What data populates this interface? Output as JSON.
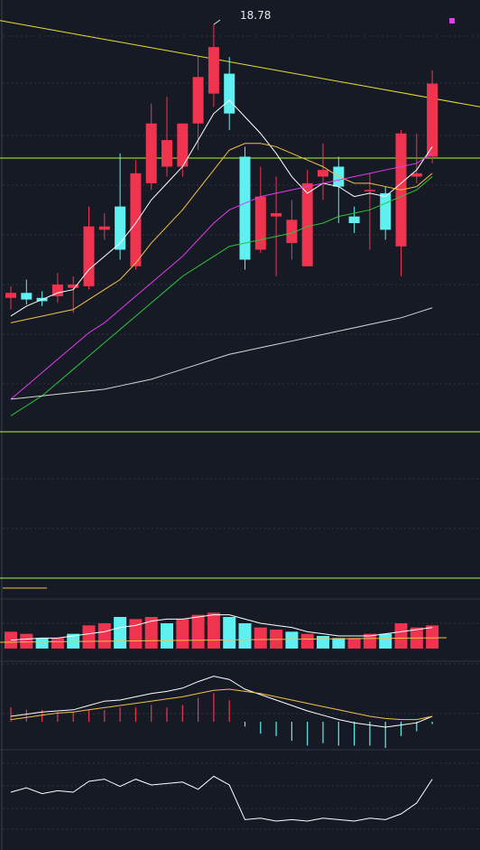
{
  "colors": {
    "background": "#161a24",
    "up": "#f0344f",
    "down": "#5ff0f2",
    "ma_white": "#ffffff",
    "ma_yellow": "#f3c04a",
    "ma_magenta": "#e33bef",
    "ma_green": "#2dc43b",
    "ma_gray": "#d6d6d6",
    "trend_line": "#e8e03a",
    "level_line": "#b4f04a",
    "grid": "#2e3442"
  },
  "annotations": {
    "high_label": "18.78"
  },
  "chart_data": [
    {
      "type": "candlestick",
      "role": "price",
      "annotation_high": "18.78",
      "candles": [
        {
          "i": 0,
          "o": 10.55,
          "c": 10.7,
          "h": 10.9,
          "l": 10.2
        },
        {
          "i": 1,
          "o": 10.7,
          "c": 10.5,
          "h": 11.1,
          "l": 10.35
        },
        {
          "i": 2,
          "o": 10.55,
          "c": 10.45,
          "h": 10.75,
          "l": 10.3
        },
        {
          "i": 3,
          "o": 10.6,
          "c": 10.95,
          "h": 11.3,
          "l": 10.4
        },
        {
          "i": 4,
          "o": 10.85,
          "c": 10.95,
          "h": 11.2,
          "l": 10.1
        },
        {
          "i": 5,
          "o": 10.9,
          "c": 12.7,
          "h": 13.3,
          "l": 10.8
        },
        {
          "i": 6,
          "o": 12.6,
          "c": 12.7,
          "h": 13.1,
          "l": 12.3
        },
        {
          "i": 7,
          "o": 13.3,
          "c": 12.0,
          "h": 14.9,
          "l": 11.7
        },
        {
          "i": 8,
          "o": 11.5,
          "c": 14.3,
          "h": 14.7,
          "l": 11.4
        },
        {
          "i": 9,
          "o": 14.0,
          "c": 15.8,
          "h": 16.4,
          "l": 13.8
        },
        {
          "i": 10,
          "o": 14.5,
          "c": 15.3,
          "h": 16.6,
          "l": 14.2
        },
        {
          "i": 11,
          "o": 14.5,
          "c": 15.8,
          "h": 15.8,
          "l": 14.2
        },
        {
          "i": 12,
          "o": 15.8,
          "c": 17.2,
          "h": 17.8,
          "l": 15.0
        },
        {
          "i": 13,
          "o": 16.7,
          "c": 18.1,
          "h": 18.78,
          "l": 16.3
        },
        {
          "i": 14,
          "o": 17.3,
          "c": 16.1,
          "h": 17.8,
          "l": 15.6
        },
        {
          "i": 15,
          "o": 14.8,
          "c": 11.7,
          "h": 15.1,
          "l": 11.4
        },
        {
          "i": 16,
          "o": 12.0,
          "c": 13.6,
          "h": 14.5,
          "l": 11.9
        },
        {
          "i": 17,
          "o": 13.0,
          "c": 13.1,
          "h": 14.2,
          "l": 11.2
        },
        {
          "i": 18,
          "o": 12.2,
          "c": 12.9,
          "h": 13.5,
          "l": 11.7
        },
        {
          "i": 19,
          "o": 11.5,
          "c": 14.0,
          "h": 14.4,
          "l": 11.5
        },
        {
          "i": 20,
          "o": 14.2,
          "c": 14.4,
          "h": 15.2,
          "l": 13.5
        },
        {
          "i": 21,
          "o": 14.5,
          "c": 13.9,
          "h": 14.8,
          "l": 12.8
        },
        {
          "i": 22,
          "o": 13.0,
          "c": 12.8,
          "h": 13.3,
          "l": 12.5
        },
        {
          "i": 23,
          "o": 13.8,
          "c": 13.8,
          "h": 14.3,
          "l": 12.0
        },
        {
          "i": 24,
          "o": 13.7,
          "c": 12.6,
          "h": 13.9,
          "l": 12.3
        },
        {
          "i": 25,
          "o": 12.1,
          "c": 15.5,
          "h": 15.6,
          "l": 11.2
        },
        {
          "i": 26,
          "o": 14.2,
          "c": 14.3,
          "h": 15.5,
          "l": 14.0
        },
        {
          "i": 27,
          "o": 14.8,
          "c": 17.0,
          "h": 17.4,
          "l": 14.6
        }
      ],
      "ma_series": [
        {
          "color_key": "ma_white",
          "values": [
            10.0,
            10.3,
            10.5,
            10.7,
            10.8,
            11.4,
            11.8,
            12.2,
            12.8,
            13.5,
            14.0,
            14.5,
            15.3,
            16.1,
            16.5,
            16.0,
            15.5,
            14.9,
            14.2,
            13.7,
            14.0,
            13.9,
            13.6,
            13.7,
            13.6,
            14.0,
            14.4,
            15.1
          ]
        },
        {
          "color_key": "ma_yellow",
          "values": [
            9.8,
            9.9,
            10.0,
            10.1,
            10.2,
            10.5,
            10.8,
            11.1,
            11.6,
            12.2,
            12.7,
            13.2,
            13.8,
            14.4,
            15.0,
            15.2,
            15.2,
            15.1,
            14.9,
            14.7,
            14.5,
            14.2,
            14.0,
            14.0,
            13.9,
            13.8,
            13.9,
            14.3
          ]
        },
        {
          "color_key": "ma_magenta",
          "values": [
            7.5,
            7.9,
            8.3,
            8.7,
            9.1,
            9.5,
            9.8,
            10.2,
            10.6,
            11.0,
            11.4,
            11.8,
            12.3,
            12.8,
            13.2,
            13.4,
            13.6,
            13.7,
            13.8,
            13.9,
            14.0,
            14.1,
            14.2,
            14.3,
            14.4,
            14.5,
            14.6,
            14.9
          ]
        },
        {
          "color_key": "ma_green",
          "values": [
            7.0,
            7.3,
            7.6,
            8.0,
            8.4,
            8.8,
            9.2,
            9.6,
            10.0,
            10.4,
            10.8,
            11.2,
            11.5,
            11.8,
            12.1,
            12.2,
            12.3,
            12.4,
            12.5,
            12.7,
            12.8,
            13.0,
            13.1,
            13.2,
            13.4,
            13.6,
            13.8,
            14.2
          ]
        },
        {
          "color_key": "ma_gray",
          "values": [
            7.5,
            7.55,
            7.6,
            7.65,
            7.7,
            7.75,
            7.8,
            7.9,
            8.0,
            8.1,
            8.25,
            8.4,
            8.55,
            8.7,
            8.85,
            8.95,
            9.05,
            9.15,
            9.25,
            9.35,
            9.45,
            9.55,
            9.65,
            9.75,
            9.85,
            9.95,
            10.1,
            10.25
          ]
        }
      ]
    },
    {
      "type": "bar",
      "role": "volume",
      "values": [
        8,
        7,
        5,
        5,
        7,
        11,
        12,
        15,
        14,
        15,
        12,
        14,
        16,
        17,
        15,
        12,
        10,
        9,
        8,
        7,
        6,
        5,
        5,
        7,
        7,
        12,
        10,
        11
      ],
      "up": [
        1,
        1,
        0,
        1,
        0,
        1,
        1,
        0,
        1,
        1,
        0,
        1,
        1,
        1,
        0,
        0,
        1,
        1,
        0,
        1,
        0,
        0,
        1,
        1,
        0,
        1,
        1,
        1
      ],
      "ma_line": [
        4,
        4.5,
        5,
        5,
        6,
        7,
        8,
        10,
        11,
        13,
        14,
        14,
        15,
        16,
        16,
        14,
        12,
        11,
        10,
        8,
        7,
        6,
        6,
        6,
        7,
        8,
        9,
        10
      ]
    },
    {
      "type": "macd",
      "role": "oscillator",
      "dif": [
        0.5,
        0.7,
        0.9,
        1.0,
        1.1,
        1.5,
        1.9,
        2.0,
        2.3,
        2.6,
        2.8,
        3.1,
        3.7,
        4.2,
        3.9,
        3.0,
        2.5,
        2.0,
        1.5,
        1.0,
        0.6,
        0.2,
        -0.1,
        -0.3,
        -0.5,
        -0.3,
        -0.1,
        0.5
      ],
      "dea": [
        0.2,
        0.4,
        0.6,
        0.8,
        0.9,
        1.1,
        1.3,
        1.5,
        1.7,
        1.9,
        2.1,
        2.3,
        2.6,
        2.9,
        3.0,
        2.8,
        2.6,
        2.3,
        2.0,
        1.7,
        1.4,
        1.1,
        0.8,
        0.5,
        0.3,
        0.2,
        0.2,
        0.5
      ],
      "hist": [
        0.6,
        0.5,
        0.5,
        0.4,
        0.4,
        0.5,
        0.5,
        0.6,
        0.6,
        0.7,
        0.6,
        0.7,
        1.0,
        1.2,
        0.9,
        -0.2,
        -0.5,
        -0.6,
        -0.8,
        -1.0,
        -0.9,
        -1.0,
        -1.0,
        -1.0,
        -1.1,
        -0.6,
        -0.4,
        -0.1
      ]
    },
    {
      "type": "line",
      "role": "indicator",
      "values": [
        60,
        66,
        58,
        62,
        60,
        75,
        78,
        68,
        78,
        70,
        72,
        74,
        64,
        82,
        70,
        22,
        24,
        20,
        22,
        20,
        24,
        22,
        20,
        24,
        22,
        30,
        45,
        78
      ],
      "ylim": [
        0,
        100
      ]
    }
  ]
}
